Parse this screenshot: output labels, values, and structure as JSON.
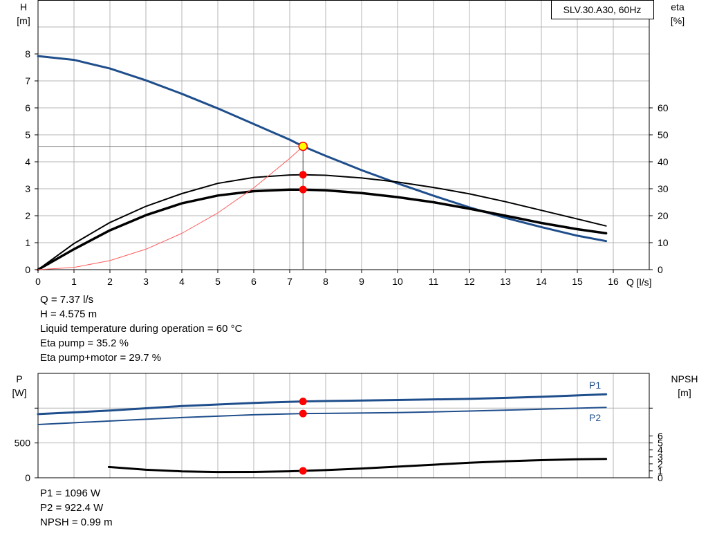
{
  "chart_data": [
    {
      "type": "line",
      "title": "SLV.30.A30, 60Hz",
      "xlabel": "Q [l/s]",
      "ylabel": "H\n[m]",
      "y2label": "eta\n[%]",
      "xlim": [
        0,
        17
      ],
      "ylim": [
        0,
        10
      ],
      "y2lim": [
        0,
        100
      ],
      "grid": true,
      "x_ticks": [
        0,
        1,
        2,
        3,
        4,
        5,
        6,
        7,
        8,
        9,
        10,
        11,
        12,
        13,
        14,
        15,
        16
      ],
      "y_ticks": [
        0,
        1,
        2,
        3,
        4,
        5,
        6,
        7,
        8
      ],
      "y2_ticks": [
        0,
        10,
        20,
        30,
        40,
        50,
        60
      ],
      "series": [
        {
          "name": "",
          "axis": "left",
          "color": "#1f4e8c",
          "width": 3,
          "x": [
            0,
            1,
            2,
            3,
            4,
            5,
            6,
            7,
            7.37,
            8,
            9,
            10,
            11,
            12,
            13,
            14,
            15,
            15.8
          ],
          "y": [
            7.92,
            7.78,
            7.46,
            7.02,
            6.52,
            5.98,
            5.4,
            4.82,
            4.575,
            4.22,
            3.69,
            3.2,
            2.74,
            2.31,
            1.92,
            1.58,
            1.26,
            1.06
          ]
        },
        {
          "name": "",
          "axis": "right",
          "color": "#000000",
          "width": 2,
          "x": [
            0,
            1,
            2,
            3,
            4,
            5,
            6,
            7,
            7.37,
            8,
            9,
            10,
            11,
            12,
            13,
            14,
            15,
            15.8
          ],
          "y": [
            0,
            9.7,
            17.5,
            23.5,
            28.2,
            32.0,
            34.2,
            35.1,
            35.2,
            35.0,
            34.0,
            32.5,
            30.5,
            28.1,
            25.2,
            22.0,
            18.8,
            16.2
          ]
        },
        {
          "name": "",
          "axis": "right",
          "color": "#000000",
          "width": 3.5,
          "x": [
            0,
            1,
            2,
            3,
            4,
            5,
            6,
            7,
            7.37,
            8,
            9,
            10,
            11,
            12,
            13,
            14,
            15,
            15.8
          ],
          "y": [
            0,
            7.6,
            14.6,
            20.2,
            24.6,
            27.5,
            29.1,
            29.7,
            29.7,
            29.4,
            28.4,
            26.9,
            25.0,
            22.6,
            20.0,
            17.3,
            15.0,
            13.5
          ]
        },
        {
          "name": "",
          "axis": "left",
          "color": "#ff5a5a",
          "width": 1,
          "x": [
            0,
            1,
            2,
            3,
            4,
            5,
            6,
            7,
            7.37
          ],
          "y": [
            0,
            0.084,
            0.337,
            0.758,
            1.347,
            2.105,
            3.031,
            4.126,
            4.575
          ]
        }
      ],
      "operating_point": {
        "x": 7.37,
        "y": 4.575
      },
      "markers": [
        {
          "axis": "left",
          "x": 7.37,
          "y": 4.575,
          "style": "yellow"
        },
        {
          "axis": "right",
          "x": 7.37,
          "y": 35.2,
          "style": "red"
        },
        {
          "axis": "right",
          "x": 7.37,
          "y": 29.7,
          "style": "red"
        }
      ]
    },
    {
      "type": "line",
      "xlabel": "",
      "ylabel": "P\n[W]",
      "y2label": "NPSH\n[m]",
      "xlim": [
        0,
        17
      ],
      "ylim": [
        0,
        1500
      ],
      "y2lim": [
        0,
        15
      ],
      "grid": true,
      "y_ticks": [
        0,
        500
      ],
      "y2_ticks": [
        0,
        1,
        2,
        3,
        4,
        5,
        6
      ],
      "series": [
        {
          "name": "P1",
          "axis": "left",
          "color": "#1f4e8c",
          "width": 3,
          "x": [
            0,
            2,
            4,
            6,
            7.37,
            8,
            10,
            12,
            14,
            15.8
          ],
          "y": [
            915,
            965,
            1030,
            1075,
            1096,
            1102,
            1117,
            1133,
            1163,
            1200
          ]
        },
        {
          "name": "P2",
          "axis": "left",
          "color": "#1f4e8c",
          "width": 2,
          "x": [
            0,
            2,
            4,
            6,
            7.37,
            8,
            10,
            12,
            14,
            15.8
          ],
          "y": [
            765,
            815,
            865,
            905,
            922.4,
            925,
            935,
            958,
            985,
            1010
          ]
        },
        {
          "name": "",
          "axis": "right",
          "color": "#000000",
          "width": 3,
          "x": [
            1.97,
            3,
            4,
            5,
            6,
            7,
            7.37,
            8,
            9,
            10,
            11,
            12,
            13,
            14,
            15,
            15.8
          ],
          "y": [
            1.55,
            1.15,
            0.92,
            0.83,
            0.84,
            0.93,
            0.99,
            1.1,
            1.33,
            1.6,
            1.88,
            2.15,
            2.37,
            2.53,
            2.65,
            2.7
          ]
        }
      ],
      "markers": [
        {
          "axis": "left",
          "x": 7.37,
          "y": 1096,
          "style": "red"
        },
        {
          "axis": "left",
          "x": 7.37,
          "y": 922.4,
          "style": "red"
        },
        {
          "axis": "right",
          "x": 7.37,
          "y": 0.99,
          "style": "red"
        }
      ]
    }
  ],
  "info_top": [
    "Q = 7.37 l/s",
    "H = 4.575 m",
    "Liquid temperature during operation = 60 °C",
    "Eta pump = 35.2 %",
    "Eta pump+motor = 29.7 %"
  ],
  "info_bottom": [
    "P1 = 1096 W",
    "P2 = 922.4 W",
    "NPSH = 0.99 m"
  ]
}
